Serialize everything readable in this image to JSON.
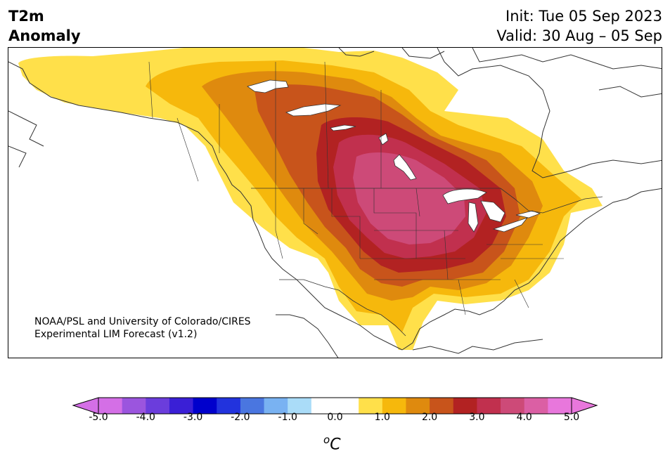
{
  "header": {
    "title_line1": "T2m",
    "title_line2": "Anomaly",
    "init": "Init: Tue 05 Sep 2023",
    "valid": "Valid: 30 Aug – 05 Sep"
  },
  "credit": {
    "line1": "NOAA/PSL and University of Colorado/CIRES",
    "line2": "Experimental LIM Forecast (v1.2)"
  },
  "colorbar": {
    "unit_base": "C",
    "unit_sup": "o",
    "tick_labels": [
      "-5.0",
      "-4.0",
      "-3.0",
      "-2.0",
      "-1.0",
      "0.0",
      "1.0",
      "2.0",
      "3.0",
      "4.0",
      "5.0"
    ],
    "colors": [
      "#d46fe6",
      "#9b55de",
      "#6b3ddc",
      "#3a1fd6",
      "#0000cc",
      "#2233dd",
      "#4a76e0",
      "#79b2f2",
      "#aadcf8",
      "#ffffff",
      "#ffffff",
      "#ffe04a",
      "#f6b80c",
      "#df8a0e",
      "#c8541b",
      "#b22222",
      "#c1304e",
      "#cd4a78",
      "#db5fa4",
      "#e877dc"
    ]
  },
  "map_legend_colors": {
    "anom_1": "#ffe04a",
    "anom_2": "#f6b80c",
    "anom_3": "#df8a0e",
    "anom_4": "#c8541b",
    "anom_5": "#b22222",
    "anom_6": "#c1304e",
    "anom_7": "#cd4a78",
    "lakes": "#ffffff",
    "borders": "#333333"
  }
}
